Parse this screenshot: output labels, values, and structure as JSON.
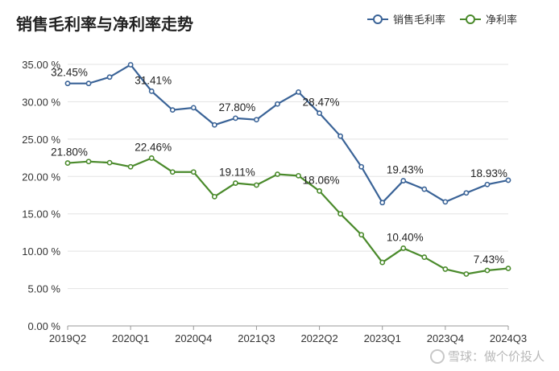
{
  "chart_data": {
    "type": "line",
    "title": "销售毛利率与净利率走势",
    "x": [
      "2019Q2",
      "2019Q3",
      "2019Q4",
      "2020Q1",
      "2020Q2",
      "2020Q3",
      "2020Q4",
      "2021Q1",
      "2021Q2",
      "2021Q3",
      "2021Q4",
      "2022Q1",
      "2022Q2",
      "2022Q3",
      "2022Q4",
      "2023Q1",
      "2023Q2",
      "2023Q3",
      "2023Q4",
      "2024Q1",
      "2024Q2",
      "2024Q3"
    ],
    "x_tick_labels": [
      "2019Q2",
      "2020Q1",
      "2020Q4",
      "2021Q3",
      "2022Q2",
      "2023Q1",
      "2023Q4",
      "2024Q3"
    ],
    "x_tick_indices": [
      0,
      3,
      6,
      9,
      12,
      15,
      18,
      21
    ],
    "y_tick_labels": [
      "0.00 %",
      "5.00 %",
      "10.00 %",
      "15.00 %",
      "20.00 %",
      "25.00 %",
      "30.00 %",
      "35.00 %"
    ],
    "ylim": [
      0,
      35
    ],
    "grid": true,
    "legend_position": "top-right",
    "series": [
      {
        "name": "销售毛利率",
        "color": "#3a6397",
        "values": [
          32.45,
          32.45,
          33.3,
          34.95,
          31.41,
          28.9,
          29.2,
          26.9,
          27.8,
          27.6,
          29.7,
          31.3,
          28.47,
          25.4,
          21.3,
          16.5,
          19.43,
          18.3,
          16.6,
          17.8,
          18.93,
          19.5
        ],
        "data_labels": [
          {
            "index": 0,
            "text": "32.45%"
          },
          {
            "index": 4,
            "text": "31.41%"
          },
          {
            "index": 8,
            "text": "27.80%"
          },
          {
            "index": 12,
            "text": "28.47%"
          },
          {
            "index": 16,
            "text": "19.43%"
          },
          {
            "index": 20,
            "text": "18.93%"
          }
        ]
      },
      {
        "name": "净利率",
        "color": "#4a8a2b",
        "values": [
          21.8,
          22.0,
          21.85,
          21.3,
          22.46,
          20.6,
          20.6,
          17.3,
          19.11,
          18.85,
          20.3,
          20.1,
          18.06,
          15.0,
          12.2,
          8.5,
          10.4,
          9.2,
          7.6,
          6.95,
          7.43,
          7.7
        ],
        "data_labels": [
          {
            "index": 0,
            "text": "21.80%"
          },
          {
            "index": 4,
            "text": "22.46%"
          },
          {
            "index": 8,
            "text": "19.11%"
          },
          {
            "index": 12,
            "text": "18.06%"
          },
          {
            "index": 16,
            "text": "10.40%"
          },
          {
            "index": 20,
            "text": "7.43%"
          }
        ]
      }
    ]
  },
  "watermark": "雪球：做个价投人"
}
